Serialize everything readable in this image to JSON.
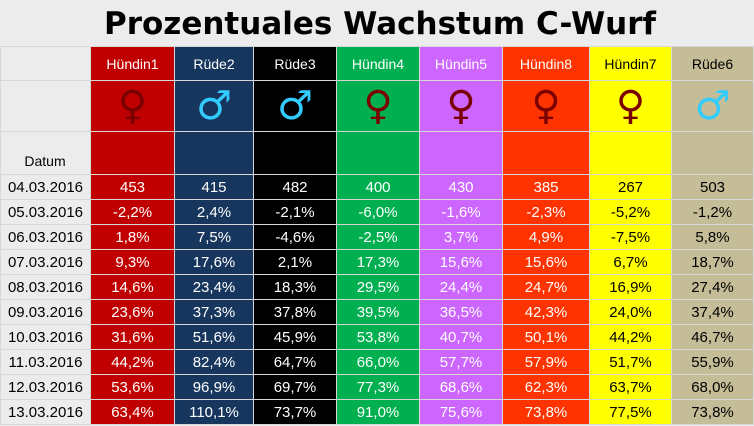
{
  "title": "Prozentuales Wachstum C-Wurf",
  "datum_label": "Datum",
  "columns": [
    {
      "name": "Hündin1",
      "bg": "#c00000",
      "fg": "#ffffff",
      "symbol": "♀",
      "symbol_color": "#7a0000"
    },
    {
      "name": "Rüde2",
      "bg": "#17365d",
      "fg": "#ffffff",
      "symbol": "♂",
      "symbol_color": "#33ccff"
    },
    {
      "name": "Rüde3",
      "bg": "#000000",
      "fg": "#ffffff",
      "symbol": "♂",
      "symbol_color": "#33ccff"
    },
    {
      "name": "Hündin4",
      "bg": "#00b050",
      "fg": "#ffffff",
      "symbol": "♀",
      "symbol_color": "#7a0000"
    },
    {
      "name": "Hündin5",
      "bg": "#cc66ff",
      "fg": "#ffffff",
      "symbol": "♀",
      "symbol_color": "#7a0000"
    },
    {
      "name": "Hündin8",
      "bg": "#ff3300",
      "fg": "#ffffff",
      "symbol": "♀",
      "symbol_color": "#7a0000"
    },
    {
      "name": "Hündin7",
      "bg": "#ffff00",
      "fg": "#000000",
      "symbol": "♀",
      "symbol_color": "#7a0000"
    },
    {
      "name": "Rüde6",
      "bg": "#c4bd97",
      "fg": "#000000",
      "symbol": "♂",
      "symbol_color": "#33ccff"
    }
  ],
  "rows": [
    {
      "date": "04.03.2016",
      "values": [
        "453",
        "415",
        "482",
        "400",
        "430",
        "385",
        "267",
        "503"
      ]
    },
    {
      "date": "05.03.2016",
      "values": [
        "-2,2%",
        "2,4%",
        "-2,1%",
        "-6,0%",
        "-1,6%",
        "-2,3%",
        "-5,2%",
        "-1,2%"
      ]
    },
    {
      "date": "06.03.2016",
      "values": [
        "1,8%",
        "7,5%",
        "-4,6%",
        "-2,5%",
        "3,7%",
        "4,9%",
        "-7,5%",
        "5,8%"
      ]
    },
    {
      "date": "07.03.2016",
      "values": [
        "9,3%",
        "17,6%",
        "2,1%",
        "17,3%",
        "15,6%",
        "15,6%",
        "6,7%",
        "18,7%"
      ]
    },
    {
      "date": "08.03.2016",
      "values": [
        "14,6%",
        "23,4%",
        "18,3%",
        "29,5%",
        "24,4%",
        "24,7%",
        "16,9%",
        "27,4%"
      ]
    },
    {
      "date": "09.03.2016",
      "values": [
        "23,6%",
        "37,3%",
        "37,8%",
        "39,5%",
        "36,5%",
        "42,3%",
        "24,0%",
        "37,4%"
      ]
    },
    {
      "date": "10.03.2016",
      "values": [
        "31,6%",
        "51,6%",
        "45,9%",
        "53,8%",
        "40,7%",
        "50,1%",
        "44,2%",
        "46,7%"
      ]
    },
    {
      "date": "11.03.2016",
      "values": [
        "44,2%",
        "82,4%",
        "64,7%",
        "66,0%",
        "57,7%",
        "57,9%",
        "51,7%",
        "55,9%"
      ]
    },
    {
      "date": "12.03.2016",
      "values": [
        "53,6%",
        "96,9%",
        "69,7%",
        "77,3%",
        "68,6%",
        "62,3%",
        "63,7%",
        "68,0%"
      ]
    },
    {
      "date": "13.03.2016",
      "values": [
        "63,4%",
        "110,1%",
        "73,7%",
        "91,0%",
        "75,6%",
        "73,8%",
        "77,5%",
        "73,8%"
      ]
    }
  ]
}
